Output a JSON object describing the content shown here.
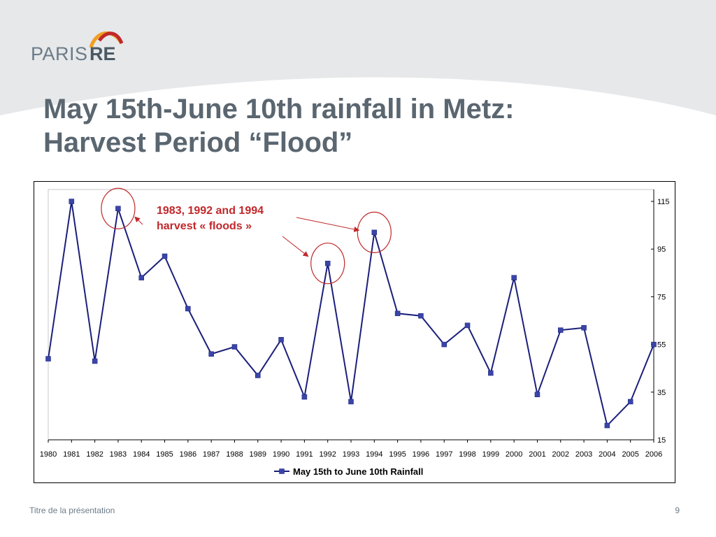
{
  "logo": {
    "word1": "PARIS",
    "word2": "RE"
  },
  "title": {
    "line1": "May 15th-June 10th rainfall in Metz:",
    "line2": "Harvest Period “Flood”"
  },
  "annotation": {
    "line1": "1983, 1992 and 1994",
    "line2": "harvest « floods »"
  },
  "footer": {
    "left": "Titre de la présentation",
    "page": "9"
  },
  "colors": {
    "series": "#1b1f7a",
    "marker": "#3a45a8",
    "annotation": "#c0282a",
    "title": "#5a6670"
  },
  "chart_data": {
    "type": "line",
    "categories": [
      "1980",
      "1981",
      "1982",
      "1983",
      "1984",
      "1985",
      "1986",
      "1987",
      "1988",
      "1989",
      "1990",
      "1991",
      "1992",
      "1993",
      "1994",
      "1995",
      "1996",
      "1997",
      "1998",
      "1999",
      "2000",
      "2001",
      "2002",
      "2003",
      "2004",
      "2005",
      "2006"
    ],
    "series": [
      {
        "name": "May 15th to June 10th Rainfall",
        "values": [
          49,
          115,
          48,
          112,
          83,
          92,
          70,
          51,
          54,
          42,
          57,
          33,
          89,
          31,
          102,
          68,
          67,
          55,
          63,
          43,
          83,
          34,
          61,
          62,
          21,
          31,
          55
        ]
      }
    ],
    "ylim": [
      15,
      120
    ],
    "yticks": [
      15,
      35,
      55,
      75,
      95,
      115
    ],
    "yaxis_position": "right",
    "grid": false,
    "legend": "bottom",
    "highlighted": [
      "1983",
      "1992",
      "1994"
    ]
  }
}
